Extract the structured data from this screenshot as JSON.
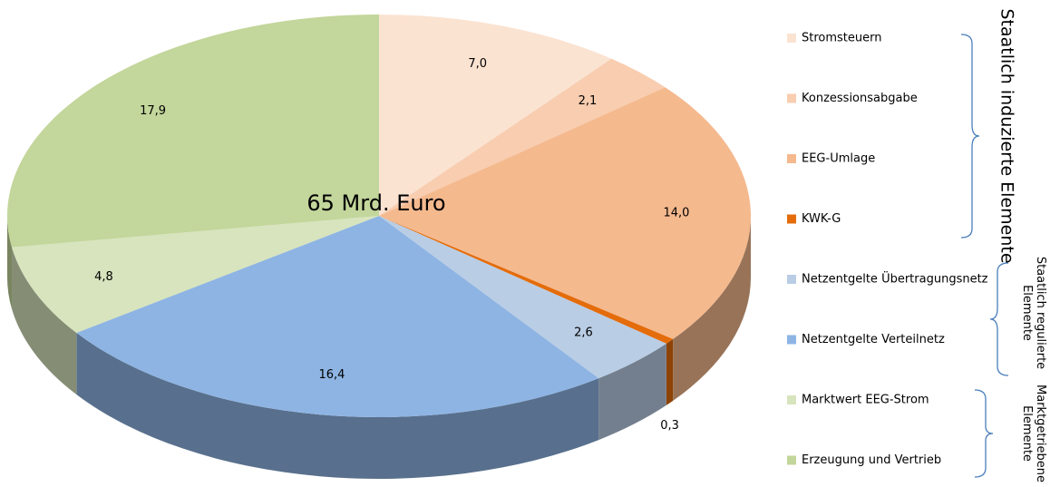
{
  "chart_data": {
    "type": "pie",
    "annotation": "65 Mrd. Euro",
    "categories": [
      "Stromsteuern",
      "Konzessionsabgabe",
      "EEG-Umlage",
      "KWK-G",
      "Netzentgelte Übertragungsnetz",
      "Netzentgelte Verteilnetz",
      "Marktwert EEG-Strom",
      "Erzeugung und Vertrieb"
    ],
    "values": [
      7.0,
      2.1,
      14.0,
      0.3,
      2.6,
      16.4,
      4.8,
      17.9
    ],
    "value_labels": [
      "7,0",
      "2,1",
      "14,0",
      "0,3",
      "2,6",
      "16,4",
      "4,8",
      "17,9"
    ],
    "colors": [
      "#fbe3d2",
      "#f8cdb0",
      "#f5b98e",
      "#e46c0a",
      "#b9cde5",
      "#8eb4e3",
      "#d7e4bd",
      "#c3d69b"
    ],
    "groups": [
      {
        "lines": [
          "Staatlich induzierte Elemente"
        ]
      },
      {
        "lines": [
          "Staatlich regulierte",
          "Elemente"
        ]
      },
      {
        "lines": [
          "Marktgetriebene",
          "Elemente"
        ]
      }
    ]
  }
}
